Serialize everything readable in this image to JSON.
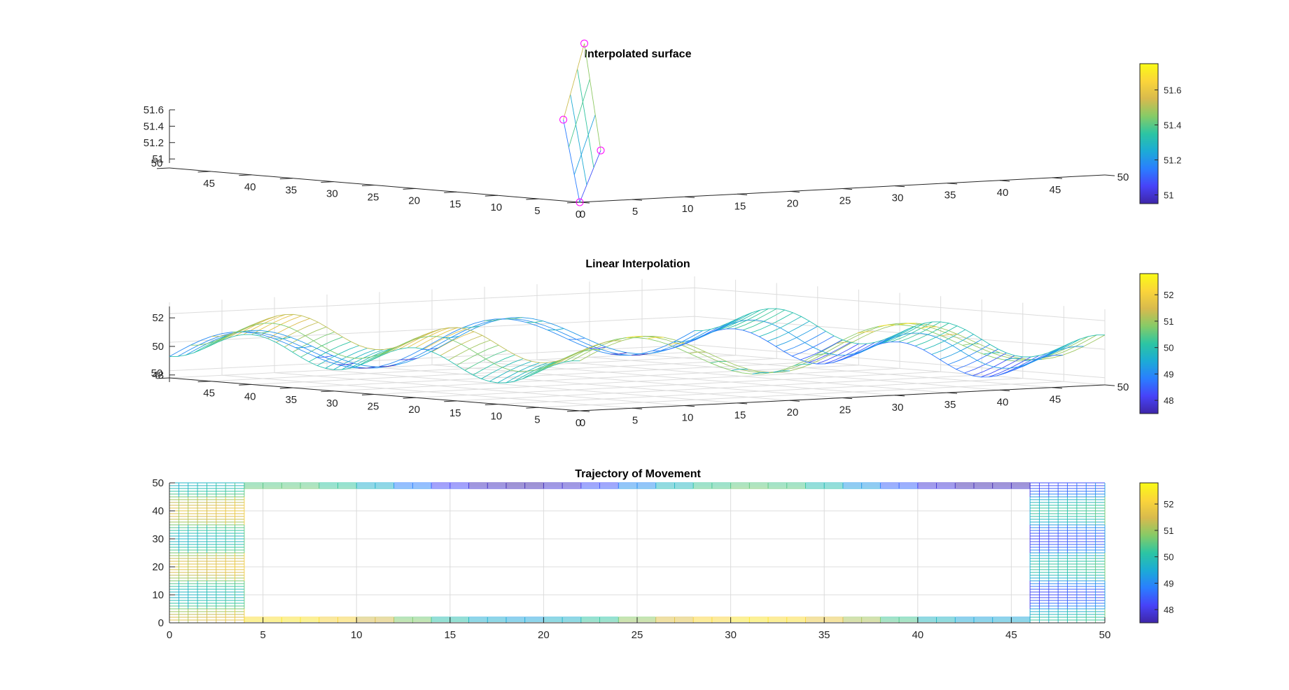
{
  "colormap": [
    "#3e26a8",
    "#4743f8",
    "#2a7eff",
    "#1cabd6",
    "#2cc5a3",
    "#86cb67",
    "#d8ba4d",
    "#fbd53a",
    "#f9fb15"
  ],
  "chart_data": [
    {
      "type": "surface",
      "title": "Interpolated surface",
      "xlim": [
        0,
        50
      ],
      "ylim": [
        0,
        50
      ],
      "zlim": [
        51,
        51.6
      ],
      "z_ticks": [
        "51",
        "51.2",
        "51.4",
        "51.6"
      ],
      "x_ticks": [
        "0",
        "5",
        "10",
        "15",
        "20",
        "25",
        "30",
        "35",
        "40",
        "45",
        "50"
      ],
      "y_ticks": [
        "0",
        "5",
        "10",
        "15",
        "20",
        "25",
        "30",
        "35",
        "40",
        "45",
        "50"
      ],
      "sample_points": [
        {
          "x": 0,
          "y": 0,
          "z": 50.95
        },
        {
          "x": 2,
          "y": 0,
          "z": 51.2
        },
        {
          "x": 0,
          "y": 2,
          "z": 51.35
        },
        {
          "x": 2,
          "y": 2,
          "z": 51.72
        }
      ],
      "colorbar": {
        "ticks": [
          "51",
          "51.2",
          "51.4",
          "51.6"
        ],
        "range": [
          50.95,
          51.75
        ]
      }
    },
    {
      "type": "surface",
      "title": "Linear Interpolation",
      "xlim": [
        0,
        50
      ],
      "ylim": [
        0,
        50
      ],
      "zlim": [
        47.5,
        52.8
      ],
      "z_ticks": [
        "48",
        "50",
        "52"
      ],
      "x_ticks": [
        "0",
        "5",
        "10",
        "15",
        "20",
        "25",
        "30",
        "35",
        "40",
        "45",
        "50"
      ],
      "y_ticks": [
        "0",
        "5",
        "10",
        "15",
        "20",
        "25",
        "30",
        "35",
        "40",
        "45",
        "50"
      ],
      "colorbar": {
        "ticks": [
          "48",
          "49",
          "50",
          "51",
          "52"
        ],
        "range": [
          47.5,
          52.8
        ]
      }
    },
    {
      "type": "mesh-top-view",
      "title": "Trajectory of Movement",
      "xlim": [
        0,
        50
      ],
      "ylim": [
        0,
        50
      ],
      "x_ticks": [
        "0",
        "5",
        "10",
        "15",
        "20",
        "25",
        "30",
        "35",
        "40",
        "45",
        "50"
      ],
      "y_ticks": [
        "0",
        "10",
        "20",
        "30",
        "40",
        "50"
      ],
      "grid": true,
      "colorbar": {
        "ticks": [
          "48",
          "49",
          "50",
          "51",
          "52"
        ],
        "range": [
          47.5,
          52.8
        ]
      }
    }
  ]
}
